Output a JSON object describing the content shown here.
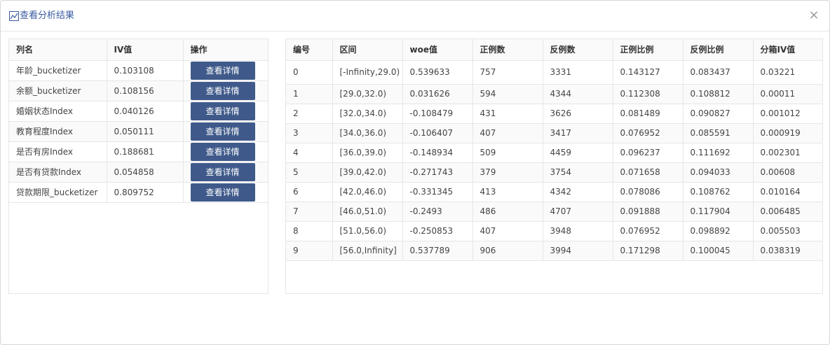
{
  "dialog": {
    "title": "查看分析结果",
    "close_symbol": "×"
  },
  "left_table": {
    "headers": [
      "列名",
      "IV值",
      "操作"
    ],
    "rows": [
      {
        "name": "年龄_bucketizer",
        "iv": "0.103108",
        "action": "查看详情"
      },
      {
        "name": "余额_bucketizer",
        "iv": "0.108156",
        "action": "查看详情"
      },
      {
        "name": "婚姻状态Index",
        "iv": "0.040126",
        "action": "查看详情"
      },
      {
        "name": "教育程度Index",
        "iv": "0.050111",
        "action": "查看详情"
      },
      {
        "name": "是否有房Index",
        "iv": "0.188681",
        "action": "查看详情"
      },
      {
        "name": "是否有贷款Index",
        "iv": "0.054858",
        "action": "查看详情"
      },
      {
        "name": "贷款期限_bucketizer",
        "iv": "0.809752",
        "action": "查看详情"
      }
    ]
  },
  "right_table": {
    "headers": [
      "编号",
      "区间",
      "woe值",
      "正例数",
      "反例数",
      "正例比例",
      "反例比例",
      "分箱IV值"
    ],
    "rows": [
      [
        "0",
        "[-Infinity,29.0)",
        "0.539633",
        "757",
        "3331",
        "0.143127",
        "0.083437",
        "0.03221"
      ],
      [
        "1",
        "[29.0,32.0)",
        "0.031626",
        "594",
        "4344",
        "0.112308",
        "0.108812",
        "0.00011"
      ],
      [
        "2",
        "[32.0,34.0)",
        "-0.108479",
        "431",
        "3626",
        "0.081489",
        "0.090827",
        "0.001012"
      ],
      [
        "3",
        "[34.0,36.0)",
        "-0.106407",
        "407",
        "3417",
        "0.076952",
        "0.085591",
        "0.000919"
      ],
      [
        "4",
        "[36.0,39.0)",
        "-0.148934",
        "509",
        "4459",
        "0.096237",
        "0.111692",
        "0.002301"
      ],
      [
        "5",
        "[39.0,42.0)",
        "-0.271743",
        "379",
        "3754",
        "0.071658",
        "0.094033",
        "0.00608"
      ],
      [
        "6",
        "[42.0,46.0)",
        "-0.331345",
        "413",
        "4342",
        "0.078086",
        "0.108762",
        "0.010164"
      ],
      [
        "7",
        "[46.0,51.0)",
        "-0.2493",
        "486",
        "4707",
        "0.091888",
        "0.117904",
        "0.006485"
      ],
      [
        "8",
        "[51.0,56.0)",
        "-0.250853",
        "407",
        "3948",
        "0.076952",
        "0.098892",
        "0.005503"
      ],
      [
        "9",
        "[56.0,Infinity]",
        "0.537789",
        "906",
        "3994",
        "0.171298",
        "0.100045",
        "0.038319"
      ]
    ]
  },
  "colors": {
    "title": "#3a5aa0",
    "button_bg": "#3f5a8a",
    "button_text": "#ffffff"
  },
  "icons": {
    "title_icon": "chart-icon",
    "close_icon": "close-icon"
  }
}
